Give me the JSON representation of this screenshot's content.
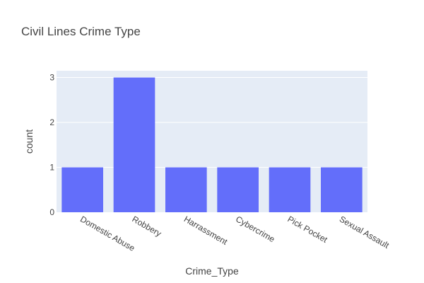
{
  "chart_data": {
    "type": "bar",
    "title": "Civil Lines Crime Type",
    "xlabel": "Crime_Type",
    "ylabel": "count",
    "categories": [
      "Domestic Abuse",
      "Robbery",
      "Harrassment",
      "Cybercrime",
      "Pick Pocket",
      "Sexual Assault"
    ],
    "values": [
      1,
      3,
      1,
      1,
      1,
      1
    ],
    "yticks": [
      "0",
      "1",
      "2",
      "3"
    ],
    "ylim": [
      0,
      3.15
    ],
    "grid": true,
    "colors": {
      "bar": "#636efa",
      "plot_bg": "#e5ecf6",
      "grid": "#ffffff",
      "text": "#444444"
    }
  }
}
